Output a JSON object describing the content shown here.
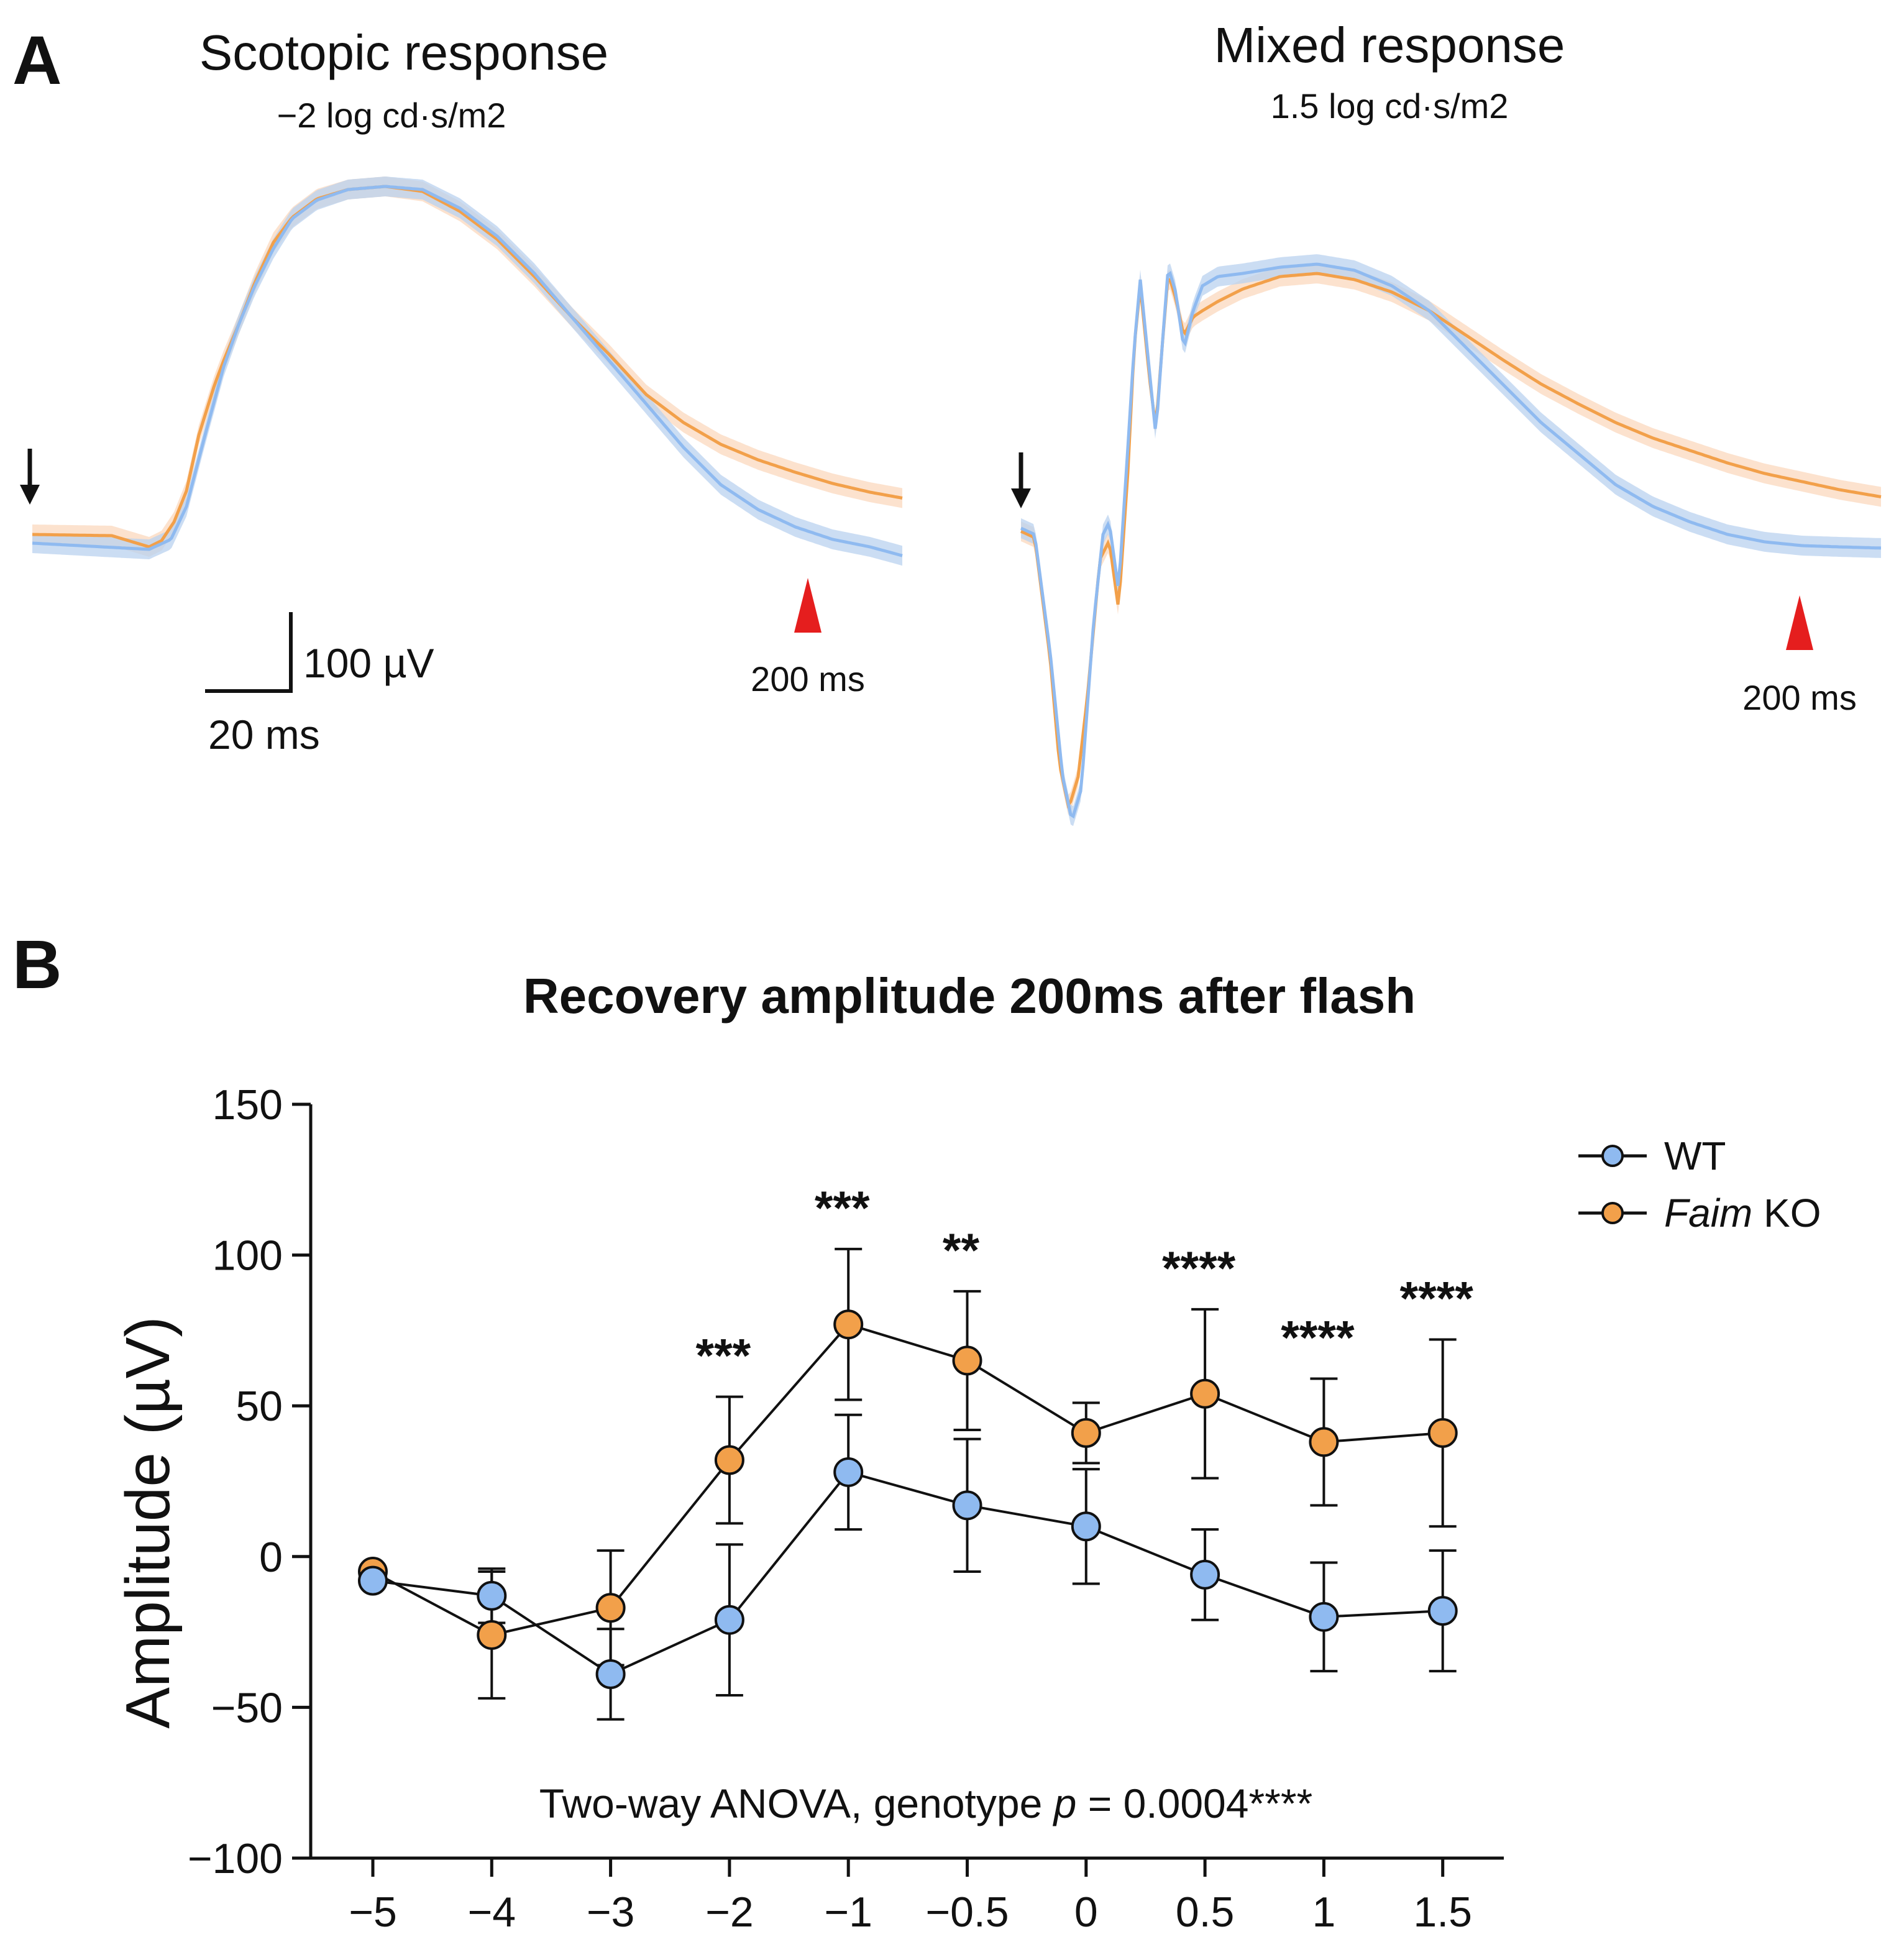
{
  "panel_a": {
    "label": "A",
    "left": {
      "title": "Scotopic response",
      "subtitle": "−2 log cd·s/m2",
      "marker_label": "200 ms"
    },
    "right": {
      "title": "Mixed response",
      "subtitle": "1.5 log cd·s/m2",
      "marker_label": "200 ms"
    },
    "scale_bar": {
      "v_label": "100 µV",
      "h_label": "20 ms"
    }
  },
  "panel_b": {
    "label": "B"
  },
  "colors": {
    "wt": "#8fbaf0",
    "ko": "#f2a04a",
    "wt_band": "#b9d2ef",
    "ko_band": "#fbd8bd",
    "marker_red": "#e51e1e",
    "ink": "#111111"
  },
  "chart_data": {
    "type": "line",
    "title": "Recovery amplitude 200ms after flash",
    "xlabel": "",
    "ylabel": "Amplitude (µV)",
    "ylim": [
      -100,
      150
    ],
    "yticks": [
      -100,
      -50,
      0,
      50,
      100,
      150
    ],
    "categories": [
      "−5",
      "−4",
      "−3",
      "−2",
      "−1",
      "−0.5",
      "0",
      "0.5",
      "1",
      "1.5"
    ],
    "series": [
      {
        "name": "WT",
        "legend_label": "WT",
        "color_key": "wt",
        "values": [
          -8,
          -13,
          -39,
          -21,
          28,
          17,
          10,
          -6,
          -20,
          -18
        ],
        "errors": [
          0,
          9,
          15,
          25,
          19,
          22,
          19,
          15,
          18,
          20
        ]
      },
      {
        "name": "Faim KO",
        "legend_italic": "Faim",
        "legend_suffix": " KO",
        "color_key": "ko",
        "values": [
          -5,
          -26,
          -17,
          32,
          77,
          65,
          41,
          54,
          38,
          41
        ],
        "errors": [
          0,
          21,
          19,
          21,
          25,
          23,
          10,
          28,
          21,
          31
        ]
      }
    ],
    "significance": [
      "",
      "",
      "",
      "***",
      "***",
      "**",
      "",
      "****",
      "****",
      "****"
    ],
    "annotation": {
      "prefix": "Two-way ANOVA, genotype ",
      "p_symbol": "p",
      "suffix": " = 0.0004****"
    },
    "legend_position": "top-right"
  }
}
